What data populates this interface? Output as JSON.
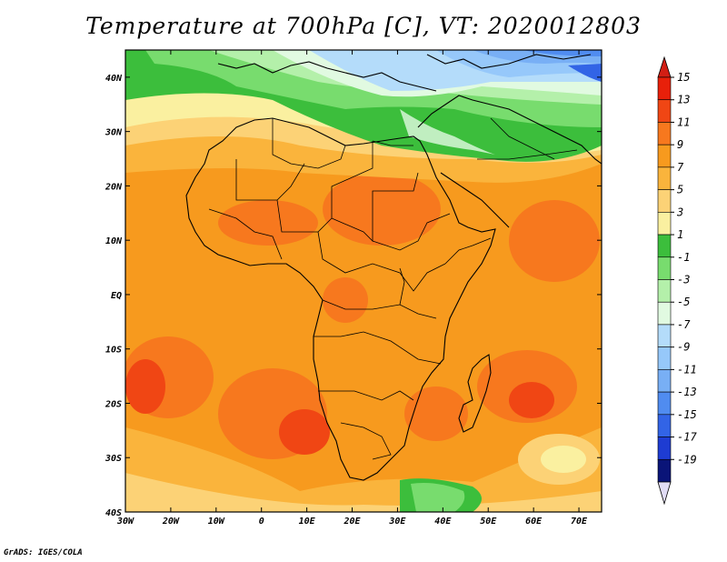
{
  "title": "Temperature at 700hPa [C], VT: 2020012803",
  "credit": "GrADS: IGES/COLA",
  "map": {
    "lon_range": [
      -30,
      75
    ],
    "lat_range": [
      -40,
      45
    ],
    "lon_ticks": [
      {
        "value": -30,
        "label": "30W"
      },
      {
        "value": -20,
        "label": "20W"
      },
      {
        "value": -10,
        "label": "10W"
      },
      {
        "value": 0,
        "label": "0"
      },
      {
        "value": 10,
        "label": "10E"
      },
      {
        "value": 20,
        "label": "20E"
      },
      {
        "value": 30,
        "label": "30E"
      },
      {
        "value": 40,
        "label": "40E"
      },
      {
        "value": 50,
        "label": "50E"
      },
      {
        "value": 60,
        "label": "60E"
      },
      {
        "value": 70,
        "label": "70E"
      }
    ],
    "lat_ticks": [
      {
        "value": 40,
        "label": "40N"
      },
      {
        "value": 30,
        "label": "30N"
      },
      {
        "value": 20,
        "label": "20N"
      },
      {
        "value": 10,
        "label": "10N"
      },
      {
        "value": 0,
        "label": "EQ"
      },
      {
        "value": -10,
        "label": "10S"
      },
      {
        "value": -20,
        "label": "20S"
      },
      {
        "value": -30,
        "label": "30S"
      },
      {
        "value": -40,
        "label": "40S"
      }
    ]
  },
  "colorbar": {
    "levels": [
      {
        "label": "15",
        "color": "#e8200a"
      },
      {
        "label": "13",
        "color": "#f04614"
      },
      {
        "label": "11",
        "color": "#f7781e"
      },
      {
        "label": "9",
        "color": "#f79a1e"
      },
      {
        "label": "7",
        "color": "#fab43c"
      },
      {
        "label": "5",
        "color": "#fcd276"
      },
      {
        "label": "3",
        "color": "#faf0a0"
      },
      {
        "label": "1",
        "color": "#3cbe3c"
      },
      {
        "label": "-1",
        "color": "#78dc6e"
      },
      {
        "label": "-3",
        "color": "#b4f0aa"
      },
      {
        "label": "-5",
        "color": "#e1fae1"
      },
      {
        "label": "-7",
        "color": "#b4dcfa"
      },
      {
        "label": "-9",
        "color": "#96c8fa"
      },
      {
        "label": "-11",
        "color": "#78aff5"
      },
      {
        "label": "-13",
        "color": "#508cf0"
      },
      {
        "label": "-15",
        "color": "#3264e6"
      },
      {
        "label": "-17",
        "color": "#1e3cd2"
      },
      {
        "label": "-19",
        "color": "#0a1478"
      }
    ],
    "top_cap_color": "#d21e14",
    "bottom_cap_color": "#e1dcf5"
  }
}
